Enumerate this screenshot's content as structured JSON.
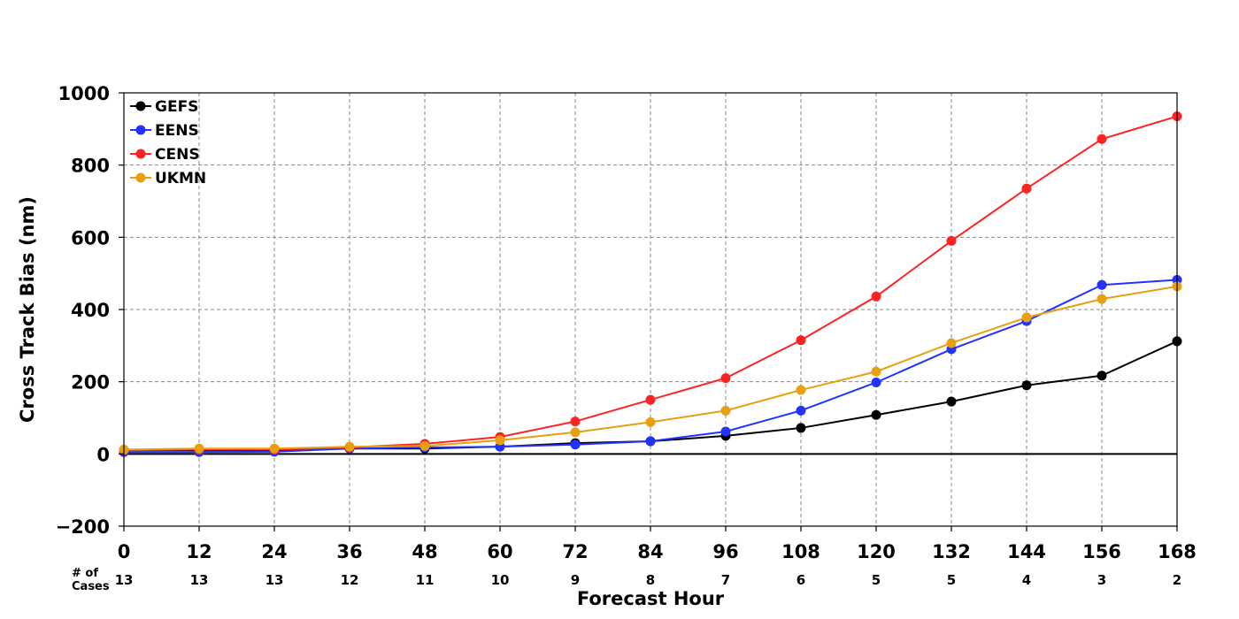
{
  "chart_data": {
    "type": "line",
    "title": "",
    "xlabel": "Forecast Hour",
    "ylabel": "Cross Track Bias (nm)",
    "x": [
      0,
      12,
      24,
      36,
      48,
      60,
      72,
      84,
      96,
      108,
      120,
      132,
      144,
      156,
      168
    ],
    "xlim": [
      0,
      168
    ],
    "ylim": [
      -200,
      1000
    ],
    "yticks": [
      -200,
      0,
      200,
      400,
      600,
      800,
      1000
    ],
    "grid": true,
    "legend_position": "top-left",
    "cases_label_line1": "# of",
    "cases_label_line2": "Cases",
    "cases": [
      13,
      13,
      13,
      12,
      11,
      10,
      9,
      8,
      7,
      6,
      5,
      5,
      4,
      3,
      2
    ],
    "series": [
      {
        "name": "GEFS",
        "color": "#000000",
        "values": [
          10,
          10,
          10,
          15,
          15,
          20,
          30,
          35,
          50,
          72,
          108,
          145,
          190,
          217,
          312
        ]
      },
      {
        "name": "EENS",
        "color": "#2233ff",
        "values": [
          5,
          5,
          6,
          15,
          18,
          20,
          26,
          35,
          62,
          120,
          198,
          290,
          368,
          468,
          482
        ]
      },
      {
        "name": "CENS",
        "color": "#ff2222",
        "values": [
          10,
          12,
          12,
          18,
          28,
          47,
          90,
          150,
          210,
          315,
          436,
          590,
          735,
          872,
          935
        ]
      },
      {
        "name": "UKMN",
        "color": "#e8a010",
        "values": [
          12,
          15,
          15,
          20,
          22,
          38,
          60,
          88,
          120,
          177,
          228,
          307,
          378,
          429,
          464
        ]
      }
    ]
  }
}
